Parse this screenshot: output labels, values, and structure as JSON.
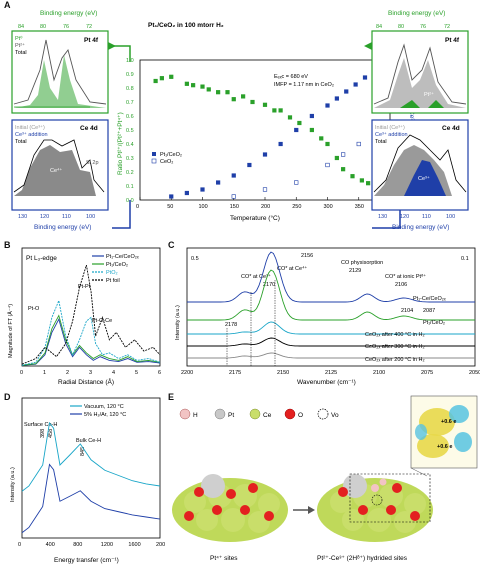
{
  "panel_letters": [
    "A",
    "B",
    "C",
    "D",
    "E"
  ],
  "panelA": {
    "title": "Pt₁/CeO₂ in 100 mtorr H₂",
    "annot": [
      "Eₑₓc = 680 eV",
      "IMFP = 1.17 nm in CeO₂"
    ],
    "left_top_axis_label": "Binding energy (eV)",
    "left_top_ticks": [
      "84",
      "80",
      "76",
      "72"
    ],
    "left_top_tag": "Pt 4f",
    "left_top_legend": [
      "Pt⁰",
      "Pt²⁺",
      "Total"
    ],
    "left_bottom_axis_label": "Binding energy (eV)",
    "left_bottom_ticks": [
      "130",
      "120",
      "110",
      "100"
    ],
    "left_bottom_tag": "Ce 4d",
    "left_bottom_legend": [
      "Initial (Ce³⁺)",
      "Ce³⁺ addition",
      "Total"
    ],
    "left_bottom_inner": [
      "Ce⁴⁺",
      "Si 2p"
    ],
    "right_top_axis_label": "Binding energy (eV)",
    "right_top_ticks": [
      "84",
      "80",
      "76",
      "72"
    ],
    "right_top_tag": "Pt 4f",
    "right_top_inner": [
      "Pt²⁺"
    ],
    "right_bottom_axis_label": "Binding energy (eV)",
    "right_bottom_ticks": [
      "130",
      "120",
      "110",
      "100"
    ],
    "right_bottom_tag": "Ce 4d",
    "right_bottom_legend": [
      "Initial (Ce³⁺)",
      "Ce³⁺ addition",
      "Total"
    ],
    "right_bottom_inner": [
      "Ce³⁺"
    ]
  },
  "panelB": {
    "title": "Pt L₃-edge",
    "legend": [
      "Pt₁-Ce/CeO₂ₓ",
      "Pt₁/CeO₂",
      "PtO₂",
      "Pt foil"
    ],
    "annot": [
      "Pt-O",
      "Pt-Pt",
      "Pt-O-Ce"
    ],
    "xlabel": "Radial Distance (Å)",
    "ylabel": "Magnitude of FT (Å⁻⁴)",
    "xticks": [
      "0",
      "1",
      "2",
      "3",
      "4",
      "5",
      "6"
    ]
  },
  "panelC": {
    "scale_left": "0.5",
    "scale_right": "0.1",
    "annot": [
      "CO* at Ce⁴⁺",
      "CO* at Ce³⁺",
      "CO physisorption",
      "CO* at ionic Ptᵟ⁺"
    ],
    "peaks": [
      "2156",
      "2170",
      "2178",
      "2129",
      "2106",
      "2104",
      "2087"
    ],
    "labels": [
      "Pt₁-Ce/CeO₂ₓ",
      "Pt₁/CeO₂",
      "CeO₂ₓ after 400 °C in H₂",
      "CeO₂ₓ after 300 °C in H₂",
      "CeO₂ₓ after 200 °C in H₂"
    ],
    "xlabel": "Wavenumber (cm⁻¹)",
    "ylabel": "Intensity (a.u.)",
    "xticks": [
      "2200",
      "2175",
      "2150",
      "2125",
      "2100",
      "2075",
      "2050"
    ]
  },
  "panelD": {
    "legend": [
      "Vacuum, 120 °C",
      "5% H₂/Ar, 120 °C"
    ],
    "annot": [
      "Surface Ce-H",
      "Bulk Ce-H"
    ],
    "peaks": [
      "398",
      "458",
      "845"
    ],
    "xlabel": "Energy transfer (cm⁻¹)",
    "ylabel": "Intensity (a.u.)",
    "xticks": [
      "0",
      "400",
      "800",
      "1200",
      "1600",
      "2000"
    ]
  },
  "panelE": {
    "legend": [
      "H",
      "Pt",
      "Ce",
      "O",
      "Vo"
    ],
    "charges": [
      "+0.6 e",
      "+0.6 e"
    ],
    "caption_left": "Pt⁴⁺ sites",
    "caption_right": "Pt²⁺-Ce³⁺ (2Hᵟ⁺) hydrided sites"
  },
  "chart_data": [
    {
      "type": "scatter",
      "title": "Pt₁/CeO₂ in 100 mtorr H₂",
      "xlabel": "Temperature (°C)",
      "ylabel_left": "Ratio Pt²⁺/(Pt²⁺+Pt⁴⁺)",
      "ylabel_right": "Ce³⁺ addition / %",
      "xticks": [
        0,
        50,
        100,
        150,
        200,
        250,
        300,
        350,
        400
      ],
      "yticks_left": [
        0.0,
        0.1,
        0.2,
        0.3,
        0.4,
        0.5,
        0.6,
        0.7,
        0.8,
        0.9,
        1.0
      ],
      "yticks_right": [
        0,
        10,
        20,
        30,
        40
      ],
      "xlim": [
        0,
        400
      ],
      "ylim_left": [
        0,
        1.0
      ],
      "ylim_right": [
        0,
        40
      ],
      "series": [
        {
          "name": "Pt₁/CeO₂ (ratio)",
          "color": "#2aa02a",
          "axis": "left",
          "x": [
            25,
            35,
            50,
            75,
            85,
            100,
            110,
            125,
            140,
            150,
            165,
            180,
            200,
            215,
            225,
            240,
            255,
            275,
            290,
            300,
            315,
            325,
            340,
            355,
            365,
            375
          ],
          "y": [
            0.85,
            0.87,
            0.88,
            0.83,
            0.82,
            0.81,
            0.79,
            0.77,
            0.77,
            0.72,
            0.74,
            0.7,
            0.68,
            0.64,
            0.64,
            0.59,
            0.55,
            0.5,
            0.44,
            0.4,
            0.3,
            0.22,
            0.17,
            0.14,
            0.12,
            0.1
          ]
        },
        {
          "name": "Pt₁/CeO₂",
          "color": "#1f3fa8",
          "axis": "right",
          "marker": "filled-square",
          "x": [
            50,
            75,
            100,
            125,
            150,
            175,
            200,
            225,
            250,
            275,
            300,
            315,
            330,
            345,
            360,
            375
          ],
          "y": [
            1,
            2,
            3,
            5,
            7,
            10,
            13,
            16,
            20,
            24,
            27,
            29,
            31,
            33,
            35,
            36
          ]
        },
        {
          "name": "CeO₂",
          "color": "#1f3fa8",
          "axis": "right",
          "marker": "open-square",
          "x": [
            150,
            200,
            250,
            300,
            325,
            350,
            375
          ],
          "y": [
            1,
            3,
            5,
            10,
            13,
            16,
            18
          ]
        }
      ]
    },
    {
      "type": "line",
      "title": "Pt L₃-edge",
      "xlabel": "Radial Distance (Å)",
      "ylabel": "Magnitude of FT (Å⁻⁴)",
      "xlim": [
        0,
        6
      ],
      "series": [
        {
          "name": "Pt₁-Ce/CeO₂ₓ",
          "color": "#1f3fa8",
          "x": [
            0,
            0.6,
            1.0,
            1.3,
            1.6,
            1.9,
            2.2,
            2.5,
            2.8,
            3.1,
            3.4,
            3.8,
            4.2,
            4.6,
            5.0,
            5.5,
            6.0
          ],
          "y": [
            0.02,
            0.05,
            0.3,
            0.9,
            1.25,
            0.6,
            0.25,
            0.5,
            0.3,
            0.15,
            0.25,
            0.15,
            0.12,
            0.2,
            0.1,
            0.12,
            0.08
          ]
        },
        {
          "name": "Pt₁/CeO₂",
          "color": "#2aa02a",
          "x": [
            0,
            0.6,
            1.0,
            1.3,
            1.6,
            1.9,
            2.2,
            2.5,
            2.8,
            3.1,
            3.4,
            3.8,
            4.2,
            4.6,
            5.0,
            5.5,
            6.0
          ],
          "y": [
            0.02,
            0.06,
            0.35,
            1.0,
            1.35,
            0.7,
            0.3,
            0.55,
            0.35,
            0.2,
            0.3,
            0.2,
            0.15,
            0.25,
            0.12,
            0.15,
            0.1
          ]
        },
        {
          "name": "PtO₂",
          "color": "#1aa6c8",
          "x": [
            0,
            0.6,
            1.0,
            1.3,
            1.6,
            1.9,
            2.2,
            2.5,
            2.8,
            3.0,
            3.2,
            3.5,
            3.8,
            4.2,
            4.6,
            5.0,
            5.5,
            6.0
          ],
          "y": [
            0.02,
            0.1,
            0.5,
            1.3,
            1.75,
            0.8,
            0.3,
            0.7,
            1.2,
            1.3,
            0.6,
            0.3,
            0.35,
            0.2,
            0.3,
            0.15,
            0.2,
            0.1
          ]
        },
        {
          "name": "Pt foil",
          "color": "#000000",
          "x": [
            0,
            0.6,
            1.0,
            1.5,
            1.9,
            2.2,
            2.5,
            2.8,
            3.0,
            3.2,
            3.5,
            3.8,
            4.1,
            4.5,
            4.9,
            5.3,
            5.7,
            6.0
          ],
          "y": [
            0.05,
            0.2,
            0.5,
            0.25,
            0.6,
            1.2,
            2.1,
            2.7,
            2.0,
            0.8,
            1.3,
            0.7,
            0.9,
            0.5,
            0.7,
            0.4,
            0.5,
            0.3
          ]
        }
      ]
    },
    {
      "type": "line",
      "xlabel": "Wavenumber (cm⁻¹)",
      "ylabel": "Intensity (a.u.)",
      "xlim": [
        2200,
        2050
      ],
      "series": [
        {
          "name": "Pt₁-Ce/CeO₂ₓ",
          "color": "#1f3fa8"
        },
        {
          "name": "Pt₁/CeO₂",
          "color": "#2aa02a"
        },
        {
          "name": "CeO₂ₓ after 400 °C in H₂",
          "color": "#1aa6c8"
        },
        {
          "name": "CeO₂ₓ after 300 °C in H₂",
          "color": "#000000"
        },
        {
          "name": "CeO₂ₓ after 200 °C in H₂",
          "color": "#888888"
        }
      ]
    },
    {
      "type": "line",
      "xlabel": "Energy transfer (cm⁻¹)",
      "ylabel": "Intensity (a.u.)",
      "xlim": [
        0,
        2000
      ],
      "series": [
        {
          "name": "Vacuum, 120 °C",
          "color": "#1aa6c8",
          "x": [
            0,
            100,
            200,
            300,
            398,
            458,
            550,
            700,
            845,
            1000,
            1200,
            1400,
            1600,
            1800,
            2000
          ],
          "y": [
            0.35,
            0.4,
            0.5,
            0.6,
            1.0,
            0.95,
            0.6,
            0.7,
            0.8,
            0.65,
            0.55,
            0.5,
            0.45,
            0.42,
            0.4
          ]
        },
        {
          "name": "5% H₂/Ar, 120 °C",
          "color": "#1f3fa8",
          "x": [
            0,
            100,
            200,
            300,
            398,
            458,
            550,
            700,
            845,
            1000,
            1200,
            1400,
            1600,
            1800,
            2000
          ],
          "y": [
            0.05,
            0.1,
            0.2,
            0.3,
            0.7,
            0.65,
            0.35,
            0.4,
            0.45,
            0.35,
            0.28,
            0.25,
            0.22,
            0.2,
            0.18
          ]
        }
      ]
    }
  ]
}
